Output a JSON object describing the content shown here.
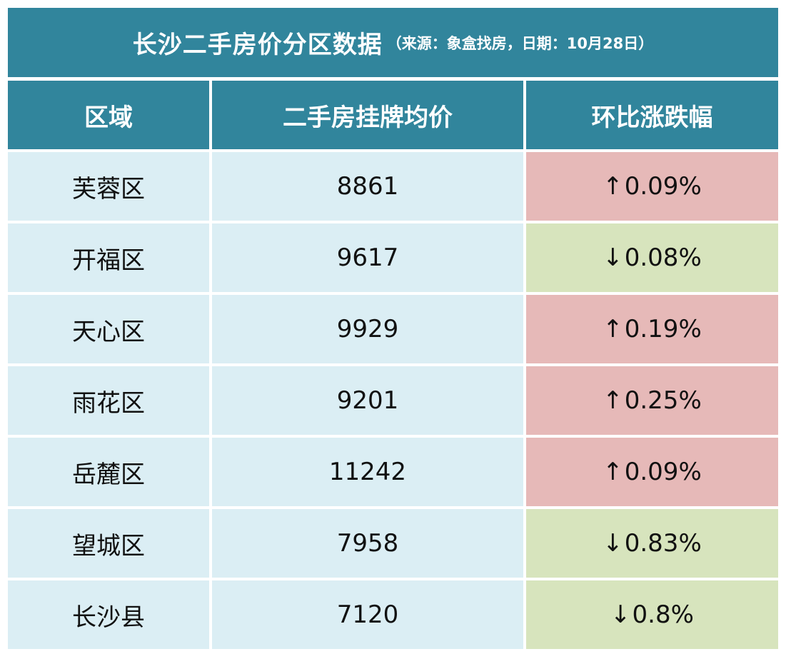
{
  "title": {
    "main": "长沙二手房价分区数据",
    "sub": "（来源：象盒找房，日期：10月28日）"
  },
  "headers": {
    "district": "区域",
    "price": "二手房挂牌均价",
    "change": "环比涨跌幅"
  },
  "rows": [
    {
      "district": "芙蓉区",
      "price": "8861",
      "arrow": "↑",
      "change": "0.09%",
      "direction": "up"
    },
    {
      "district": "开福区",
      "price": "9617",
      "arrow": "↓",
      "change": "0.08%",
      "direction": "down"
    },
    {
      "district": "天心区",
      "price": "9929",
      "arrow": "↑",
      "change": "0.19%",
      "direction": "up"
    },
    {
      "district": "雨花区",
      "price": "9201",
      "arrow": "↑",
      "change": "0.25%",
      "direction": "up"
    },
    {
      "district": "岳麓区",
      "price": "11242",
      "arrow": "↑",
      "change": "0.09%",
      "direction": "up"
    },
    {
      "district": "望城区",
      "price": "7958",
      "arrow": "↓",
      "change": "0.83%",
      "direction": "down"
    },
    {
      "district": "长沙县",
      "price": "7120",
      "arrow": "↓",
      "change": "0.8%",
      "direction": "down"
    }
  ],
  "colors": {
    "header_bg": "#31859c",
    "cell_bg": "#dbeef4",
    "up_bg": "#e6b9b8",
    "down_bg": "#d7e4bd"
  }
}
